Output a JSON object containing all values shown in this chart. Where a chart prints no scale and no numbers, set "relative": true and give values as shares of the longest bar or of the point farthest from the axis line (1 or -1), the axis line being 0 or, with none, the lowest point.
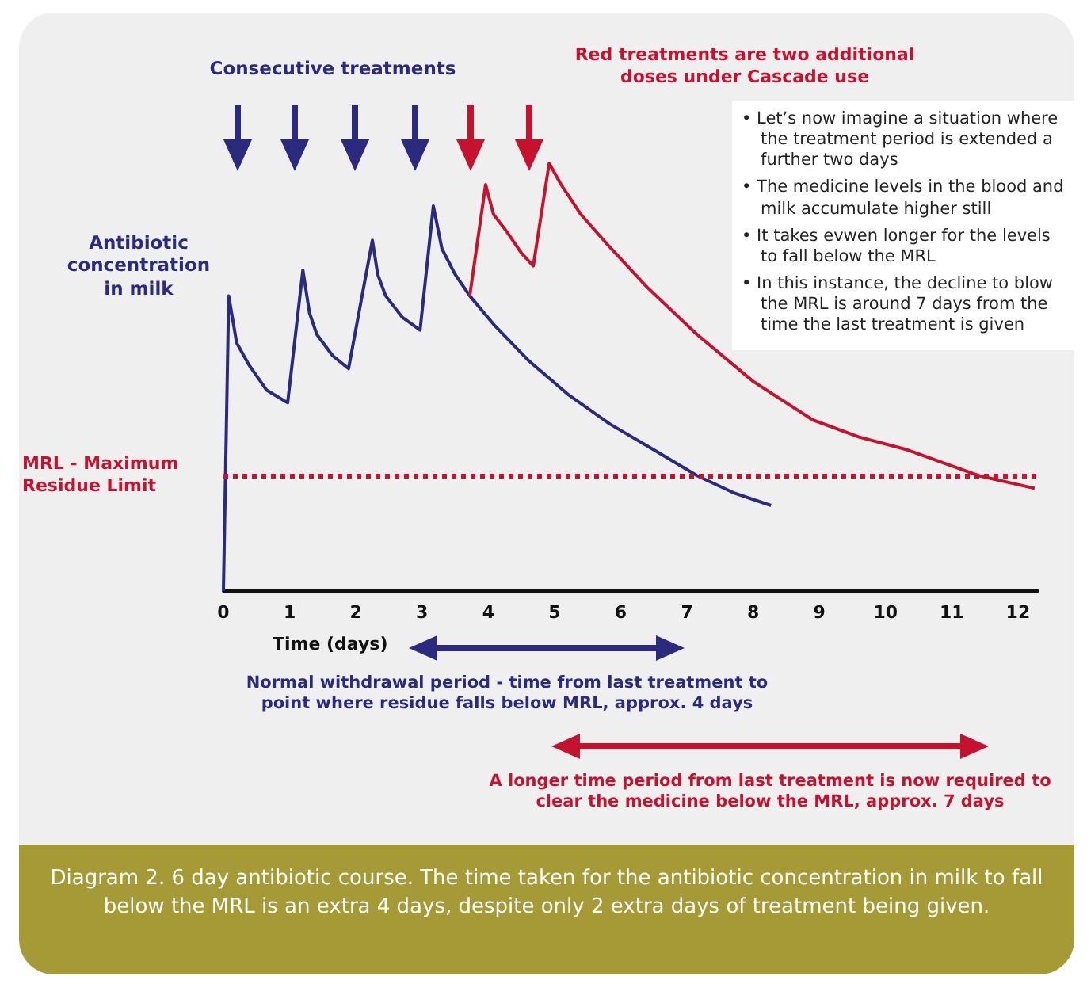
{
  "chart_data": {
    "type": "line",
    "relative": true,
    "xlabel": "Time (days)",
    "ylabel": "Antibiotic concentration in milk",
    "xlim": [
      0,
      12.3
    ],
    "xticks": [
      0,
      1,
      2,
      3,
      4,
      5,
      6,
      7,
      8,
      9,
      10,
      11,
      12
    ],
    "series": [
      {
        "color": "#2b2a7f",
        "x": [
          0,
          0.08,
          0.2,
          0.38,
          0.65,
          0.97,
          1.2,
          1.3,
          1.41,
          1.65,
          1.89,
          2.25,
          2.33,
          2.45,
          2.7,
          2.97,
          3.17,
          3.3,
          3.5,
          3.72,
          4.1,
          4.6,
          5.2,
          5.84,
          6.5,
          7.15,
          7.7,
          8.27
        ],
        "values": [
          0,
          0.69,
          0.58,
          0.53,
          0.47,
          0.44,
          0.75,
          0.65,
          0.6,
          0.55,
          0.52,
          0.82,
          0.74,
          0.69,
          0.64,
          0.61,
          0.9,
          0.8,
          0.74,
          0.69,
          0.62,
          0.54,
          0.46,
          0.39,
          0.33,
          0.27,
          0.23,
          0.2
        ]
      },
      {
        "color": "#c4122f",
        "x": [
          3.72,
          3.96,
          4.08,
          4.28,
          4.5,
          4.68,
          4.92,
          5.1,
          5.4,
          5.8,
          6.4,
          7.15,
          8,
          8.9,
          9.6,
          10.33,
          11.4,
          12.25
        ],
        "values": [
          0.69,
          0.95,
          0.88,
          0.84,
          0.79,
          0.76,
          1,
          0.95,
          0.88,
          0.81,
          0.71,
          0.6,
          0.49,
          0.4,
          0.36,
          0.33,
          0.27,
          0.24
        ]
      }
    ],
    "ref_lines": [
      {
        "axis": "y",
        "value": 0.27,
        "label": "MRL - Maximum Residue Limit",
        "color": "#c4122f",
        "line_style": "dotted"
      }
    ],
    "annotations": [
      "Consecutive treatments",
      "Red treatments are two additional doses under Cascade use",
      "• Let’s now imagine a situation where the treatment period is extended a further two days",
      "• The medicine levels in the blood and milk accumulate higher still",
      "• It takes evwen longer for the levels to fall below the MRL",
      "• In this instance, the decline to blow the MRL is around 7 days from the time the last treatment is given",
      "Normal withdrawal period - time from last treatment to point where residue falls below MRL, approx. 4 days",
      "A longer time period from last treatment is now required to clear the medicine below the MRL, approx. 7 days",
      "Diagram 2. 6 day antibiotic course. The time taken for the antibiotic concentration in milk to fall below the MRL is an extra 4 days, despite only 2 extra days of treatment being given."
    ]
  }
}
